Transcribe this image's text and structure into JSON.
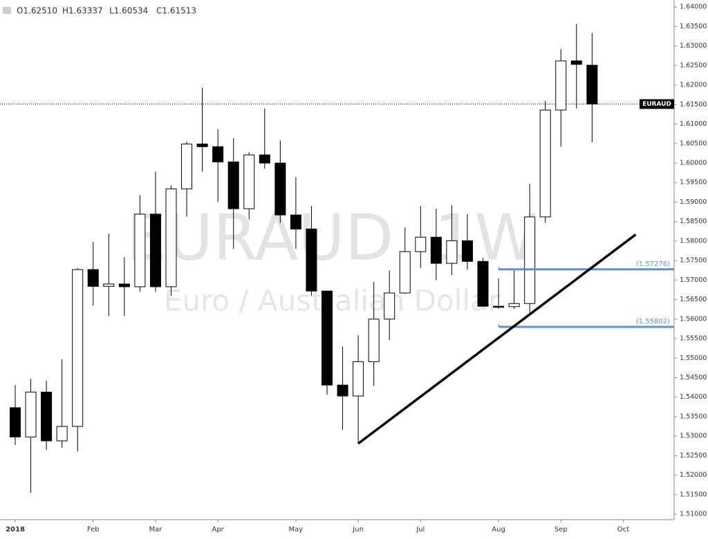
{
  "chart_data": {
    "type": "candlestick",
    "symbol_watermark": "EURAUD, 1W",
    "description_watermark": "Euro / Australian Dollar",
    "ohlc_header": [
      "O1.62510",
      "H1.63337",
      "L1.60534",
      "C1.61513"
    ],
    "categories": [
      "2018",
      null,
      null,
      null,
      null,
      "Feb",
      null,
      null,
      null,
      "Mar",
      null,
      null,
      null,
      "Apr",
      null,
      null,
      null,
      null,
      "May",
      null,
      null,
      null,
      "Jun",
      null,
      null,
      null,
      "Jul",
      null,
      null,
      null,
      null,
      "Aug",
      null,
      null,
      null,
      "Sep",
      null,
      null,
      null,
      "Oct"
    ],
    "open": [
      1.5373,
      1.5298,
      1.5413,
      1.5288,
      1.5325,
      1.5727,
      1.5684,
      1.569,
      1.5683,
      1.5869,
      1.5683,
      1.5934,
      1.6049,
      1.6042,
      1.6003,
      1.5883,
      1.6021,
      1.6,
      1.5867,
      1.5831,
      1.5672,
      1.5431,
      1.5403,
      1.5491,
      1.56,
      1.5667,
      1.5773,
      1.581,
      1.5743,
      1.5801,
      1.5748,
      1.5633,
      1.5632,
      1.564,
      1.5862,
      1.6136,
      1.6262,
      1.6251,
      null,
      null
    ],
    "high": [
      1.5431,
      1.5447,
      1.5442,
      1.5497,
      1.5731,
      1.5798,
      1.5819,
      1.5759,
      1.5918,
      1.5978,
      1.5943,
      1.6055,
      1.6193,
      1.6087,
      1.6064,
      1.6028,
      1.614,
      1.6058,
      1.5964,
      1.589,
      1.5672,
      1.553,
      1.5559,
      1.5695,
      1.5725,
      1.5835,
      1.589,
      1.5883,
      1.5892,
      1.5869,
      1.5757,
      1.5704,
      1.5727,
      1.5947,
      1.6159,
      1.6292,
      1.6357,
      1.63337,
      null,
      null
    ],
    "low": [
      1.5277,
      1.5155,
      1.5265,
      1.527,
      1.5261,
      1.5635,
      1.5608,
      1.5608,
      1.567,
      1.567,
      1.566,
      1.5863,
      1.5978,
      1.5901,
      1.578,
      1.5855,
      1.5986,
      1.5847,
      1.578,
      1.566,
      1.5406,
      1.5316,
      1.5281,
      1.5429,
      1.5546,
      1.5665,
      1.5731,
      1.57,
      1.5713,
      1.5727,
      1.5633,
      1.5626,
      1.5626,
      1.5608,
      1.5847,
      1.6042,
      1.614,
      1.60534,
      null,
      null
    ],
    "close": [
      1.5298,
      1.5413,
      1.5288,
      1.5325,
      1.5727,
      1.5684,
      1.569,
      1.5683,
      1.5869,
      1.5683,
      1.5934,
      1.6049,
      1.6042,
      1.6003,
      1.5883,
      1.6021,
      1.6,
      1.5867,
      1.5831,
      1.5672,
      1.5431,
      1.5403,
      1.5491,
      1.56,
      1.5667,
      1.5773,
      1.581,
      1.5743,
      1.5801,
      1.5748,
      1.5633,
      1.5632,
      1.564,
      1.5862,
      1.6136,
      1.6262,
      1.6253,
      1.61513,
      null,
      null
    ],
    "ylim": [
      1.5086,
      1.6418
    ],
    "yticks": [
      {
        "value": 1.51,
        "label": "1.51000"
      },
      {
        "value": 1.515,
        "label": "1.51500"
      },
      {
        "value": 1.52,
        "label": "1.52000"
      },
      {
        "value": 1.525,
        "label": "1.52500"
      },
      {
        "value": 1.53,
        "label": "1.53000"
      },
      {
        "value": 1.535,
        "label": "1.53500"
      },
      {
        "value": 1.54,
        "label": "1.54000"
      },
      {
        "value": 1.545,
        "label": "1.54500"
      },
      {
        "value": 1.55,
        "label": "1.55000"
      },
      {
        "value": 1.555,
        "label": "1.55500"
      },
      {
        "value": 1.56,
        "label": "1.56000"
      },
      {
        "value": 1.565,
        "label": "1.56500"
      },
      {
        "value": 1.57,
        "label": "1.57000"
      },
      {
        "value": 1.575,
        "label": "1.57500"
      },
      {
        "value": 1.58,
        "label": "1.58000"
      },
      {
        "value": 1.585,
        "label": "1.58500"
      },
      {
        "value": 1.59,
        "label": "1.59000"
      },
      {
        "value": 1.595,
        "label": "1.59500"
      },
      {
        "value": 1.6,
        "label": "1.60000"
      },
      {
        "value": 1.605,
        "label": "1.60500"
      },
      {
        "value": 1.61,
        "label": "1.61000"
      },
      {
        "value": 1.615,
        "label": "1.61500"
      },
      {
        "value": 1.62,
        "label": "1.62000"
      },
      {
        "value": 1.625,
        "label": "1.62500"
      },
      {
        "value": 1.63,
        "label": "1.63000"
      },
      {
        "value": 1.635,
        "label": "1.63500"
      },
      {
        "value": 1.64,
        "label": "1.64000"
      }
    ],
    "last_price": {
      "value": 1.61513,
      "label": "EURAUD"
    },
    "levels": [
      {
        "value": 1.57276,
        "label": "(1.57276)",
        "start": 31,
        "color": "#5b8fdb"
      },
      {
        "value": 1.55802,
        "label": "(1.55802)",
        "start": 31,
        "color": "#5b8fdb"
      }
    ],
    "trendline": {
      "start": [
        22,
        1.5281
      ],
      "end": [
        39.8,
        1.5817
      ],
      "color": "#000000"
    }
  }
}
